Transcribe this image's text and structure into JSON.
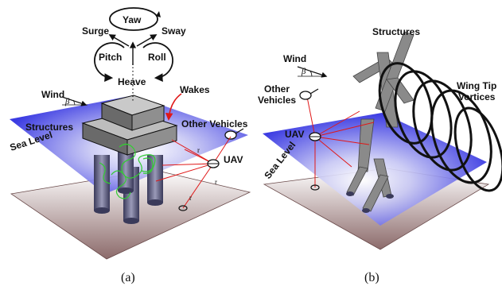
{
  "panel_a": {
    "motions": {
      "yaw": "Yaw",
      "surge": "Surge",
      "sway": "Sway",
      "pitch": "Pitch",
      "roll": "Roll",
      "heave": "Heave"
    },
    "wind": "Wind",
    "beta": "β",
    "wakes": "Wakes",
    "structures": "Structures",
    "other_vehicles": "Other Vehicles",
    "sea_level": "Sea Level",
    "uav": "UAV",
    "r_labels": [
      "r",
      "r",
      "r"
    ],
    "caption": "(a)"
  },
  "panel_b": {
    "wind": "Wind",
    "beta": "β",
    "structures": "Structures",
    "other_vehicles_line1": "Other",
    "other_vehicles_line2": "Vehicles",
    "uav": "UAV",
    "sea_level": "Sea Level",
    "vortices_line1": "Wing Tip",
    "vortices_line2": "Vortices",
    "caption": "(b)"
  },
  "colors": {
    "sea_blue": "#2a2ae0",
    "seabed": "#8c6b6b",
    "sight_lines": "#e01818",
    "wake_green": "#33cc33",
    "structure_gray": "#7a7a7a"
  }
}
